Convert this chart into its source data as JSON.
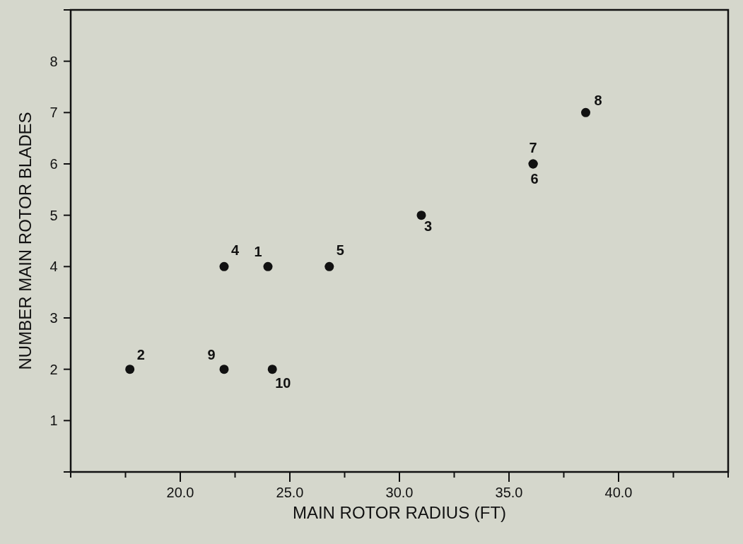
{
  "chart_data": {
    "type": "scatter",
    "xlabel": "MAIN ROTOR RADIUS (FT)",
    "ylabel": "NUMBER MAIN ROTOR BLADES",
    "x": [
      24.0,
      17.7,
      31.0,
      22.0,
      26.8,
      36.1,
      36.1,
      38.5,
      22.0,
      24.2
    ],
    "series": [
      {
        "color": "#111111",
        "values": [
          4,
          2,
          5,
          4,
          4,
          6,
          6,
          7,
          2,
          2
        ]
      }
    ],
    "marker": "circle",
    "xlim": [
      15,
      45
    ],
    "xticks": [
      {
        "value": 15,
        "label": null
      },
      {
        "value": 17.5,
        "label": null
      },
      {
        "value": 20,
        "label": "20.0"
      },
      {
        "value": 22.5,
        "label": null
      },
      {
        "value": 25,
        "label": "25.0"
      },
      {
        "value": 27.5,
        "label": null
      },
      {
        "value": 30,
        "label": "30.0"
      },
      {
        "value": 32.5,
        "label": null
      },
      {
        "value": 35,
        "label": "35.0"
      },
      {
        "value": 37.5,
        "label": null
      },
      {
        "value": 40,
        "label": "40.0"
      },
      {
        "value": 42.5,
        "label": null
      },
      {
        "value": 45,
        "label": null
      }
    ],
    "ylim": [
      0,
      9
    ],
    "yticks": [
      {
        "value": 0,
        "label": null
      },
      1,
      2,
      3,
      4,
      5,
      6,
      7,
      8,
      {
        "value": 9,
        "label": null
      }
    ],
    "annotations": [
      {
        "text": "1",
        "x": 24.0,
        "y": 4
      },
      {
        "text": "2",
        "x": 17.7,
        "y": 2
      },
      {
        "text": "3",
        "x": 31.0,
        "y": 5
      },
      {
        "text": "4",
        "x": 22.0,
        "y": 4
      },
      {
        "text": "5",
        "x": 26.8,
        "y": 4
      },
      {
        "text": "6",
        "x": 36.1,
        "y": 6
      },
      {
        "text": "7",
        "x": 36.1,
        "y": 6
      },
      {
        "text": "8",
        "x": 38.5,
        "y": 7
      },
      {
        "text": "9",
        "x": 22.0,
        "y": 2
      },
      {
        "text": "10",
        "x": 24.2,
        "y": 2
      }
    ],
    "grid": false
  }
}
